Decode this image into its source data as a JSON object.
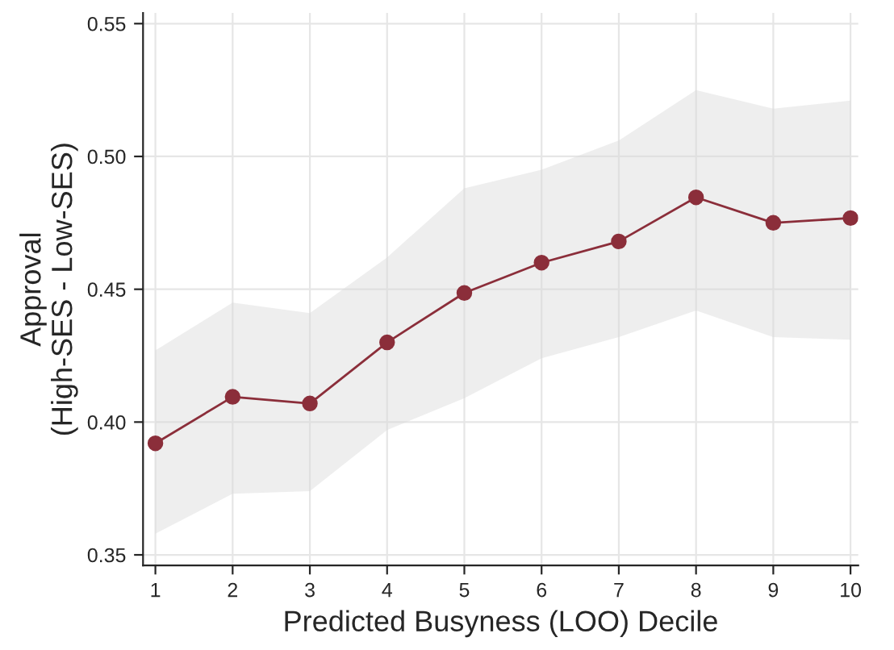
{
  "chart_data": {
    "type": "line",
    "xlabel": "Predicted Busyness (LOO) Decile",
    "ylabel": "Approval\n(High-SES - Low-SES)",
    "x": [
      1,
      2,
      3,
      4,
      5,
      6,
      7,
      8,
      9,
      10
    ],
    "series": [
      {
        "color": "#8b2e3a",
        "values": [
          0.392,
          0.4095,
          0.407,
          0.43,
          0.4486,
          0.46,
          0.468,
          0.4846,
          0.475,
          0.4768
        ],
        "lower": [
          0.358,
          0.373,
          0.374,
          0.397,
          0.409,
          0.424,
          0.432,
          0.442,
          0.432,
          0.431
        ],
        "upper": [
          0.427,
          0.445,
          0.441,
          0.462,
          0.488,
          0.495,
          0.506,
          0.525,
          0.518,
          0.521
        ]
      }
    ],
    "xlim": [
      0.84,
      10.1
    ],
    "ylim": [
      0.346,
      0.554
    ],
    "xticks": [
      1,
      2,
      3,
      4,
      5,
      6,
      7,
      8,
      9,
      10
    ],
    "yticks": [
      0.35,
      {
        "value": 0.4,
        "label": "0.40"
      },
      0.45,
      {
        "value": 0.5,
        "label": "0.50"
      },
      0.55
    ],
    "grid": true,
    "marker": "circle",
    "line_style": "solid"
  }
}
